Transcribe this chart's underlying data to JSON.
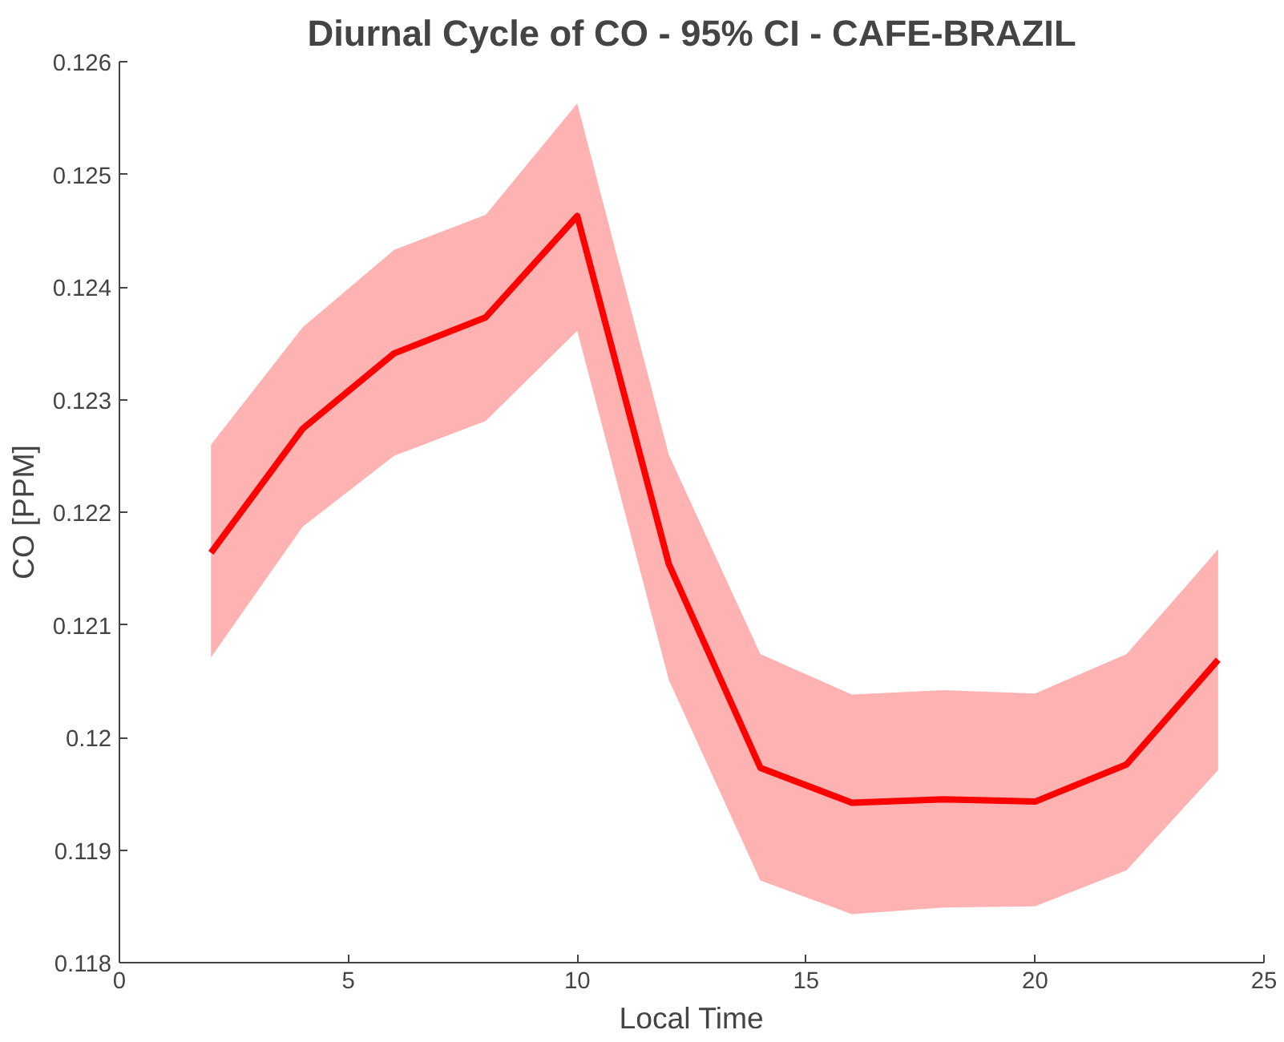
{
  "chart_data": {
    "type": "line",
    "title": "Diurnal Cycle of CO - 95% CI - CAFE-BRAZIL",
    "xlabel": "Local Time",
    "ylabel": "CO [PPM]",
    "x": [
      2,
      4,
      6,
      8,
      10,
      12,
      14,
      16,
      18,
      20,
      22,
      24
    ],
    "series": [
      {
        "color": "#ff0000",
        "values": [
          0.12164,
          0.12274,
          0.12341,
          0.12373,
          0.12463,
          0.12154,
          0.11973,
          0.11942,
          0.11945,
          0.11943,
          0.11976,
          0.12069
        ],
        "upper": [
          0.1226,
          0.12364,
          0.12433,
          0.12464,
          0.12563,
          0.12251,
          0.12074,
          0.12038,
          0.12042,
          0.12039,
          0.12074,
          0.12167
        ],
        "lower": [
          0.12071,
          0.12187,
          0.1225,
          0.12281,
          0.12361,
          0.12051,
          0.11873,
          0.11843,
          0.11849,
          0.1185,
          0.11882,
          0.11971
        ]
      }
    ],
    "xlim": [
      0,
      25
    ],
    "xticks": [
      0,
      5,
      10,
      15,
      20,
      25
    ],
    "ylim": [
      0.118,
      0.126
    ],
    "yticks": [
      {
        "value": 0.118,
        "label": "0.118"
      },
      {
        "value": 0.119,
        "label": "0.119"
      },
      {
        "value": 0.12,
        "label": "0.12"
      },
      {
        "value": 0.121,
        "label": "0.121"
      },
      {
        "value": 0.122,
        "label": "0.122"
      },
      {
        "value": 0.123,
        "label": "0.123"
      },
      {
        "value": 0.124,
        "label": "0.124"
      },
      {
        "value": 0.125,
        "label": "0.125"
      },
      {
        "value": 0.126,
        "label": "0.126"
      }
    ],
    "grid": false,
    "line_style": "solid"
  }
}
